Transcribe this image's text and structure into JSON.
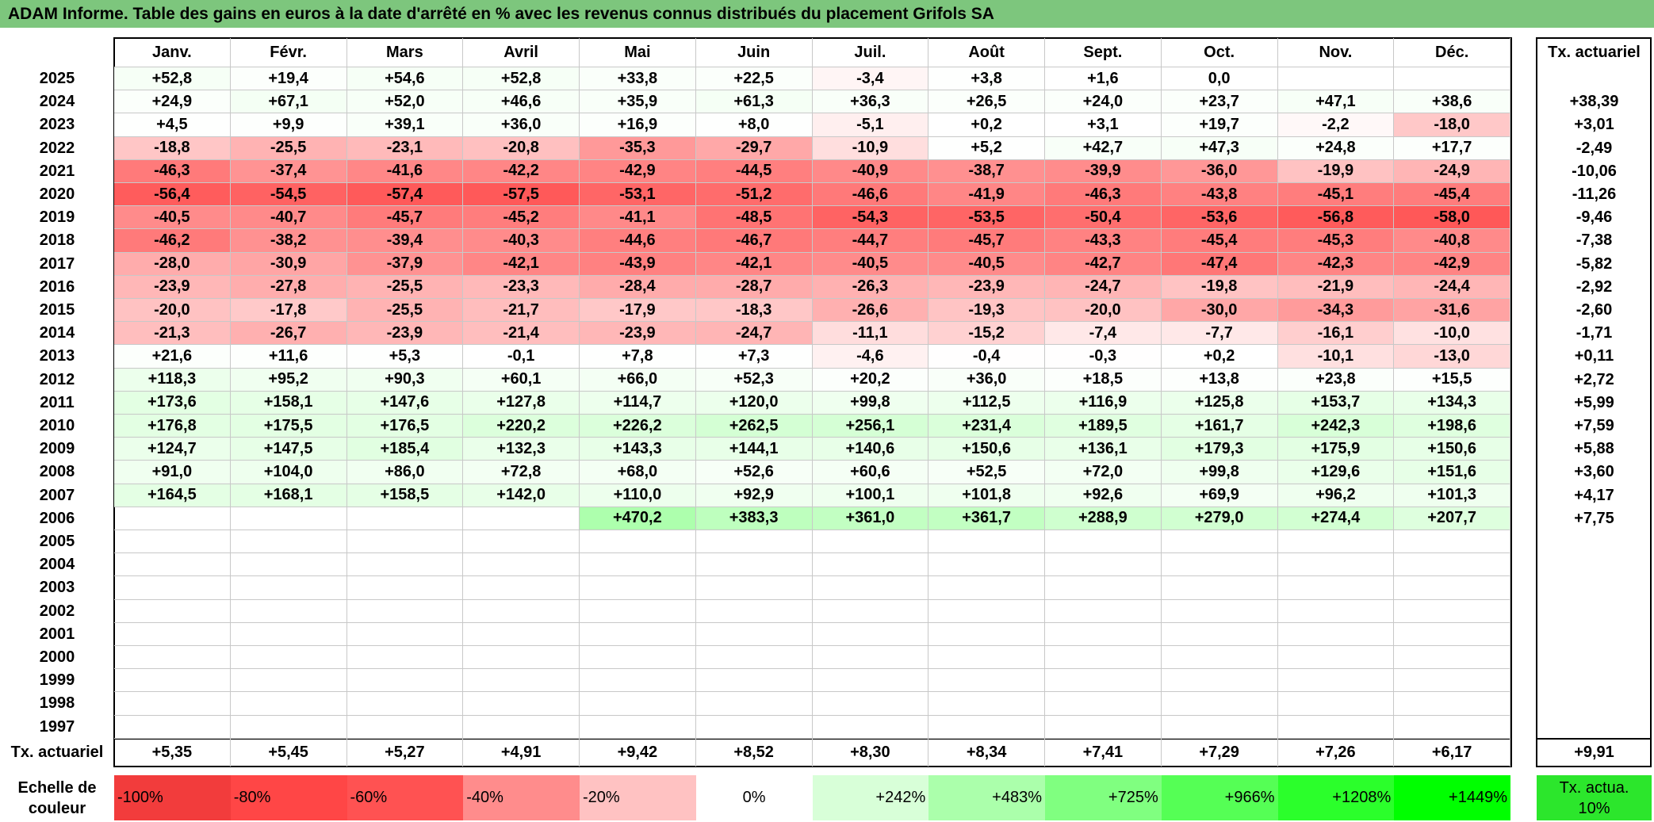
{
  "title": "ADAM Informe. Table des gains en euros à la date d'arrêté en % avec les revenus connus distribués du placement Grifols SA",
  "table": {
    "columns": [
      "Janv.",
      "Févr.",
      "Mars",
      "Avril",
      "Mai",
      "Juin",
      "Juil.",
      "Août",
      "Sept.",
      "Oct.",
      "Nov.",
      "Déc."
    ],
    "total_header": "Tx. actuariel",
    "rows": [
      {
        "year": "2025",
        "cells": [
          "+52,8",
          "+19,4",
          "+54,6",
          "+52,8",
          "+33,8",
          "+22,5",
          "-3,4",
          "+3,8",
          "+1,6",
          "0,0",
          null,
          null
        ],
        "total": null
      },
      {
        "year": "2024",
        "cells": [
          "+24,9",
          "+67,1",
          "+52,0",
          "+46,6",
          "+35,9",
          "+61,3",
          "+36,3",
          "+26,5",
          "+24,0",
          "+23,7",
          "+47,1",
          "+38,6"
        ],
        "total": "+38,39"
      },
      {
        "year": "2023",
        "cells": [
          "+4,5",
          "+9,9",
          "+39,1",
          "+36,0",
          "+16,9",
          "+8,0",
          "-5,1",
          "+0,2",
          "+3,1",
          "+19,7",
          "-2,2",
          "-18,0"
        ],
        "total": "+3,01"
      },
      {
        "year": "2022",
        "cells": [
          "-18,8",
          "-25,5",
          "-23,1",
          "-20,8",
          "-35,3",
          "-29,7",
          "-10,9",
          "+5,2",
          "+42,7",
          "+47,3",
          "+24,8",
          "+17,7"
        ],
        "total": "-2,49"
      },
      {
        "year": "2021",
        "cells": [
          "-46,3",
          "-37,4",
          "-41,6",
          "-42,2",
          "-42,9",
          "-44,5",
          "-40,9",
          "-38,7",
          "-39,9",
          "-36,0",
          "-19,9",
          "-24,9"
        ],
        "total": "-10,06"
      },
      {
        "year": "2020",
        "cells": [
          "-56,4",
          "-54,5",
          "-57,4",
          "-57,5",
          "-53,1",
          "-51,2",
          "-46,6",
          "-41,9",
          "-46,3",
          "-43,8",
          "-45,1",
          "-45,4"
        ],
        "total": "-11,26"
      },
      {
        "year": "2019",
        "cells": [
          "-40,5",
          "-40,7",
          "-45,7",
          "-45,2",
          "-41,1",
          "-48,5",
          "-54,3",
          "-53,5",
          "-50,4",
          "-53,6",
          "-56,8",
          "-58,0"
        ],
        "total": "-9,46"
      },
      {
        "year": "2018",
        "cells": [
          "-46,2",
          "-38,2",
          "-39,4",
          "-40,3",
          "-44,6",
          "-46,7",
          "-44,7",
          "-45,7",
          "-43,3",
          "-45,4",
          "-45,3",
          "-40,8"
        ],
        "total": "-7,38"
      },
      {
        "year": "2017",
        "cells": [
          "-28,0",
          "-30,9",
          "-37,9",
          "-42,1",
          "-43,9",
          "-42,1",
          "-40,5",
          "-40,5",
          "-42,7",
          "-47,4",
          "-42,3",
          "-42,9"
        ],
        "total": "-5,82"
      },
      {
        "year": "2016",
        "cells": [
          "-23,9",
          "-27,8",
          "-25,5",
          "-23,3",
          "-28,4",
          "-28,7",
          "-26,3",
          "-23,9",
          "-24,7",
          "-19,8",
          "-21,9",
          "-24,4"
        ],
        "total": "-2,92"
      },
      {
        "year": "2015",
        "cells": [
          "-20,0",
          "-17,8",
          "-25,5",
          "-21,7",
          "-17,9",
          "-18,3",
          "-26,6",
          "-19,3",
          "-20,0",
          "-30,0",
          "-34,3",
          "-31,6"
        ],
        "total": "-2,60"
      },
      {
        "year": "2014",
        "cells": [
          "-21,3",
          "-26,7",
          "-23,9",
          "-21,4",
          "-23,9",
          "-24,7",
          "-11,1",
          "-15,2",
          "-7,4",
          "-7,7",
          "-16,1",
          "-10,0"
        ],
        "total": "-1,71"
      },
      {
        "year": "2013",
        "cells": [
          "+21,6",
          "+11,6",
          "+5,3",
          "-0,1",
          "+7,8",
          "+7,3",
          "-4,6",
          "-0,4",
          "-0,3",
          "+0,2",
          "-10,1",
          "-13,0"
        ],
        "total": "+0,11"
      },
      {
        "year": "2012",
        "cells": [
          "+118,3",
          "+95,2",
          "+90,3",
          "+60,1",
          "+66,0",
          "+52,3",
          "+20,2",
          "+36,0",
          "+18,5",
          "+13,8",
          "+23,8",
          "+15,5"
        ],
        "total": "+2,72"
      },
      {
        "year": "2011",
        "cells": [
          "+173,6",
          "+158,1",
          "+147,6",
          "+127,8",
          "+114,7",
          "+120,0",
          "+99,8",
          "+112,5",
          "+116,9",
          "+125,8",
          "+153,7",
          "+134,3"
        ],
        "total": "+5,99"
      },
      {
        "year": "2010",
        "cells": [
          "+176,8",
          "+175,5",
          "+176,5",
          "+220,2",
          "+226,2",
          "+262,5",
          "+256,1",
          "+231,4",
          "+189,5",
          "+161,7",
          "+242,3",
          "+198,6"
        ],
        "total": "+7,59"
      },
      {
        "year": "2009",
        "cells": [
          "+124,7",
          "+147,5",
          "+185,4",
          "+132,3",
          "+143,3",
          "+144,1",
          "+140,6",
          "+150,6",
          "+136,1",
          "+179,3",
          "+175,9",
          "+150,6"
        ],
        "total": "+5,88"
      },
      {
        "year": "2008",
        "cells": [
          "+91,0",
          "+104,0",
          "+86,0",
          "+72,8",
          "+68,0",
          "+52,6",
          "+60,6",
          "+52,5",
          "+72,0",
          "+99,8",
          "+129,6",
          "+151,6"
        ],
        "total": "+3,60"
      },
      {
        "year": "2007",
        "cells": [
          "+164,5",
          "+168,1",
          "+158,5",
          "+142,0",
          "+110,0",
          "+92,9",
          "+100,1",
          "+101,8",
          "+92,6",
          "+69,9",
          "+96,2",
          "+101,3"
        ],
        "total": "+4,17"
      },
      {
        "year": "2006",
        "cells": [
          null,
          null,
          null,
          null,
          "+470,2",
          "+383,3",
          "+361,0",
          "+361,7",
          "+288,9",
          "+279,0",
          "+274,4",
          "+207,7"
        ],
        "total": "+7,75"
      },
      {
        "year": "2005",
        "cells": [
          null,
          null,
          null,
          null,
          null,
          null,
          null,
          null,
          null,
          null,
          null,
          null
        ],
        "total": null
      },
      {
        "year": "2004",
        "cells": [
          null,
          null,
          null,
          null,
          null,
          null,
          null,
          null,
          null,
          null,
          null,
          null
        ],
        "total": null
      },
      {
        "year": "2003",
        "cells": [
          null,
          null,
          null,
          null,
          null,
          null,
          null,
          null,
          null,
          null,
          null,
          null
        ],
        "total": null
      },
      {
        "year": "2002",
        "cells": [
          null,
          null,
          null,
          null,
          null,
          null,
          null,
          null,
          null,
          null,
          null,
          null
        ],
        "total": null
      },
      {
        "year": "2001",
        "cells": [
          null,
          null,
          null,
          null,
          null,
          null,
          null,
          null,
          null,
          null,
          null,
          null
        ],
        "total": null
      },
      {
        "year": "2000",
        "cells": [
          null,
          null,
          null,
          null,
          null,
          null,
          null,
          null,
          null,
          null,
          null,
          null
        ],
        "total": null
      },
      {
        "year": "1999",
        "cells": [
          null,
          null,
          null,
          null,
          null,
          null,
          null,
          null,
          null,
          null,
          null,
          null
        ],
        "total": null
      },
      {
        "year": "1998",
        "cells": [
          null,
          null,
          null,
          null,
          null,
          null,
          null,
          null,
          null,
          null,
          null,
          null
        ],
        "total": null
      },
      {
        "year": "1997",
        "cells": [
          null,
          null,
          null,
          null,
          null,
          null,
          null,
          null,
          null,
          null,
          null,
          null
        ],
        "total": null
      }
    ],
    "footer": {
      "label": "Tx. actuariel",
      "cells": [
        "+5,35",
        "+5,45",
        "+5,27",
        "+4,91",
        "+9,42",
        "+8,52",
        "+8,30",
        "+8,34",
        "+7,41",
        "+7,29",
        "+7,26",
        "+6,17"
      ],
      "total": "+9,91"
    }
  },
  "legend": {
    "label": "Echelle de couleur",
    "items": [
      {
        "label": "-100%",
        "color": "#f23c3c"
      },
      {
        "label": "-80%",
        "color": "#ff4646"
      },
      {
        "label": "-60%",
        "color": "#ff5252"
      },
      {
        "label": "-40%",
        "color": "#ff8c8c"
      },
      {
        "label": "-20%",
        "color": "#ffc2c2"
      },
      {
        "label": "0%",
        "color": "#ffffff"
      },
      {
        "label": "+242%",
        "color": "#d8ffd8"
      },
      {
        "label": "+483%",
        "color": "#abffab"
      },
      {
        "label": "+725%",
        "color": "#80ff80"
      },
      {
        "label": "+966%",
        "color": "#55ff55"
      },
      {
        "label": "+1208%",
        "color": "#2bff2b"
      },
      {
        "label": "+1449%",
        "color": "#00ff00"
      }
    ],
    "total": {
      "label": "Tx. actua. 10%",
      "color": "#2ce62c"
    }
  }
}
